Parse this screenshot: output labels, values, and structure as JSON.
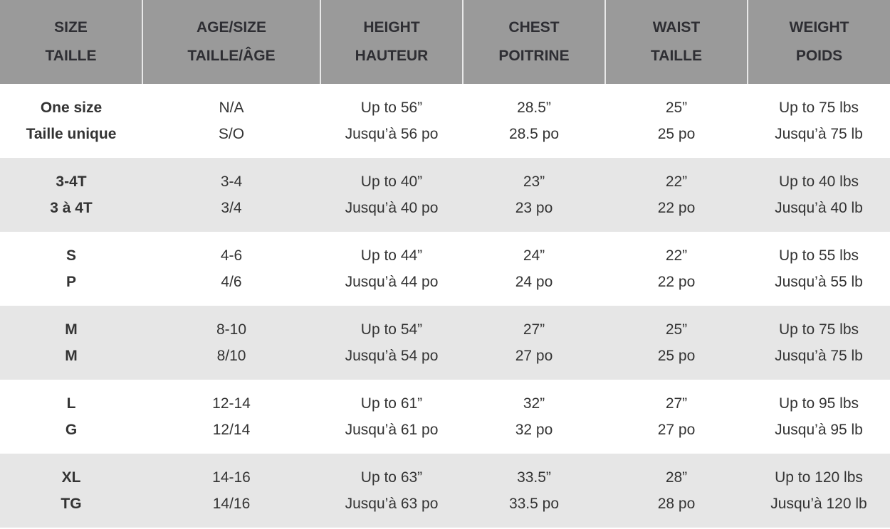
{
  "headers": [
    {
      "en": "SIZE",
      "fr": "TAILLE"
    },
    {
      "en": "AGE/SIZE",
      "fr": "TAILLE/ÂGE"
    },
    {
      "en": "HEIGHT",
      "fr": "HAUTEUR"
    },
    {
      "en": "CHEST",
      "fr": "POITRINE"
    },
    {
      "en": "WAIST",
      "fr": "TAILLE"
    },
    {
      "en": "WEIGHT",
      "fr": "POIDS"
    }
  ],
  "rows": [
    [
      {
        "en": "One size",
        "fr": "Taille unique"
      },
      {
        "en": "N/A",
        "fr": "S/O"
      },
      {
        "en": "Up to 56”",
        "fr": "Jusqu’à 56 po"
      },
      {
        "en": "28.5”",
        "fr": "28.5 po"
      },
      {
        "en": "25”",
        "fr": "25 po"
      },
      {
        "en": "Up to 75 lbs",
        "fr": "Jusqu’à 75 lb"
      }
    ],
    [
      {
        "en": "3-4T",
        "fr": "3 à 4T"
      },
      {
        "en": "3-4",
        "fr": "3/4"
      },
      {
        "en": "Up to 40”",
        "fr": "Jusqu’à 40 po"
      },
      {
        "en": "23”",
        "fr": "23 po"
      },
      {
        "en": "22”",
        "fr": "22 po"
      },
      {
        "en": "Up to 40 lbs",
        "fr": "Jusqu’à 40 lb"
      }
    ],
    [
      {
        "en": "S",
        "fr": "P"
      },
      {
        "en": "4-6",
        "fr": "4/6"
      },
      {
        "en": "Up to 44”",
        "fr": "Jusqu’à 44 po"
      },
      {
        "en": "24”",
        "fr": "24 po"
      },
      {
        "en": "22”",
        "fr": "22 po"
      },
      {
        "en": "Up to 55 lbs",
        "fr": "Jusqu’à 55 lb"
      }
    ],
    [
      {
        "en": "M",
        "fr": "M"
      },
      {
        "en": "8-10",
        "fr": "8/10"
      },
      {
        "en": "Up to 54”",
        "fr": "Jusqu’à 54 po"
      },
      {
        "en": "27”",
        "fr": "27 po"
      },
      {
        "en": "25”",
        "fr": "25 po"
      },
      {
        "en": "Up to 75 lbs",
        "fr": "Jusqu’à 75 lb"
      }
    ],
    [
      {
        "en": "L",
        "fr": "G"
      },
      {
        "en": "12-14",
        "fr": "12/14"
      },
      {
        "en": "Up to 61”",
        "fr": "Jusqu’à 61 po"
      },
      {
        "en": "32”",
        "fr": "32 po"
      },
      {
        "en": "27”",
        "fr": "27 po"
      },
      {
        "en": "Up to 95 lbs",
        "fr": "Jusqu’à 95 lb"
      }
    ],
    [
      {
        "en": "XL",
        "fr": "TG"
      },
      {
        "en": "14-16",
        "fr": "14/16"
      },
      {
        "en": "Up to 63”",
        "fr": "Jusqu’à 63 po"
      },
      {
        "en": "33.5”",
        "fr": "33.5 po"
      },
      {
        "en": "28”",
        "fr": "28 po"
      },
      {
        "en": "Up to 120 lbs",
        "fr": "Jusqu’à 120 lb"
      }
    ]
  ],
  "colors": {
    "header_bg": "#9a9a9a",
    "header_text": "#2e2e33",
    "alt_row": "#e6e6e6",
    "text": "#333333"
  }
}
